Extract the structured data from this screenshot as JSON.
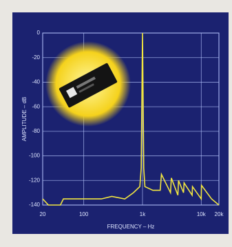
{
  "chart_data": {
    "type": "line",
    "x_label": "FREQUENCY – Hz",
    "y_label": "AMPLITUDE – dB",
    "x": [
      20,
      25,
      40,
      45,
      100,
      200,
      300,
      500,
      700,
      900,
      950,
      1000,
      1050,
      1100,
      1500,
      2000,
      2100,
      3000,
      3100,
      4000,
      4100,
      5000,
      5100,
      7000,
      7100,
      10000,
      10100,
      15000,
      20000
    ],
    "series": [
      {
        "color": "#f2e640",
        "values": [
          -135,
          -140,
          -140,
          -135,
          -135,
          -135,
          -133,
          -135,
          -130,
          -125,
          -110,
          0,
          -110,
          -125,
          -128,
          -128,
          -115,
          -130,
          -118,
          -132,
          -120,
          -130,
          -122,
          -132,
          -125,
          -135,
          -124,
          -135,
          -140
        ]
      }
    ],
    "xlim": [
      20,
      20000
    ],
    "x_log": true,
    "xticks": [
      20,
      100,
      {
        "value": 1000,
        "label": "1k"
      },
      {
        "value": 10000,
        "label": "10k"
      },
      {
        "value": 20000,
        "label": "20k"
      }
    ],
    "ylim": [
      -140,
      0
    ],
    "yticks": [
      0,
      -20,
      -40,
      -60,
      -80,
      -100,
      -120,
      -140
    ],
    "grid": true
  }
}
